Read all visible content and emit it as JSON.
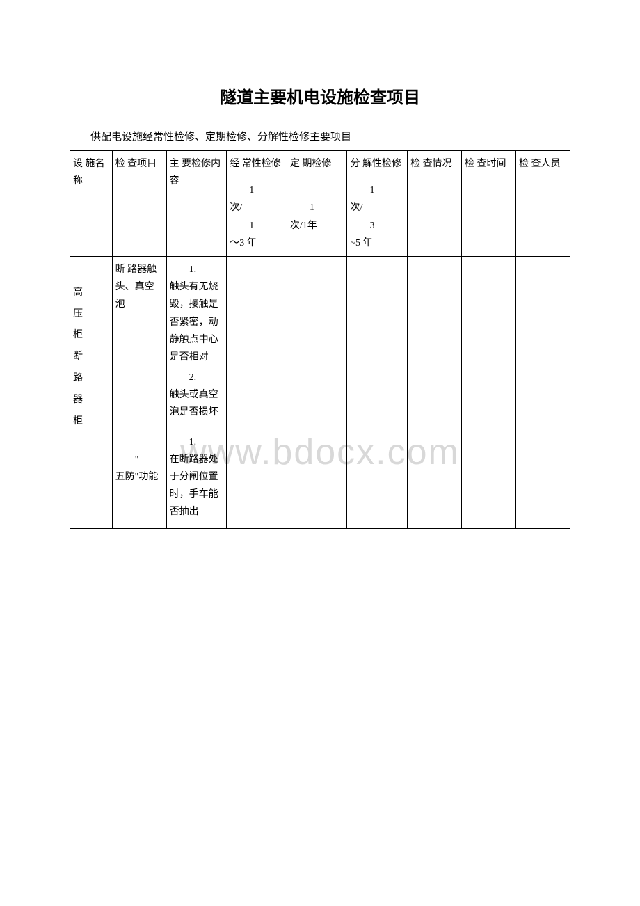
{
  "page": {
    "title": "隧道主要机电设施检查项目",
    "subtitle": "供配电设施经常性检修、定期检修、分解性检修主要项目",
    "watermark": "www.bdocx.com"
  },
  "table": {
    "headers": {
      "col1": "设施名称",
      "col2": "检查项目",
      "col3": "主要检修内容",
      "col4_top": "经常性检修",
      "col4_bottom": "1次/\n\n1～3 年",
      "col5_top": "定期检修",
      "col5_bottom": "\n1次/1年",
      "col6_top": "分解性检修",
      "col6_bottom": "1次/\n\n3~5 年",
      "col7": "检查情况",
      "col8": "检查时间",
      "col9": "检查人员"
    },
    "rows": [
      {
        "facility": "高\n压\n柜\n断\n路\n器\n柜",
        "item": "断路器触头、真空泡",
        "content1_num": "1.",
        "content1": "触头有无烧毁，接触是否紧密，动静触点中心是否相对",
        "content2_num": "2.",
        "content2": "触头或真空泡是否损坏"
      },
      {
        "item": "\"五防\"功能",
        "content1_num": "1.",
        "content1": "在断路器处于分闸位置时，手车能否抽出"
      }
    ]
  }
}
